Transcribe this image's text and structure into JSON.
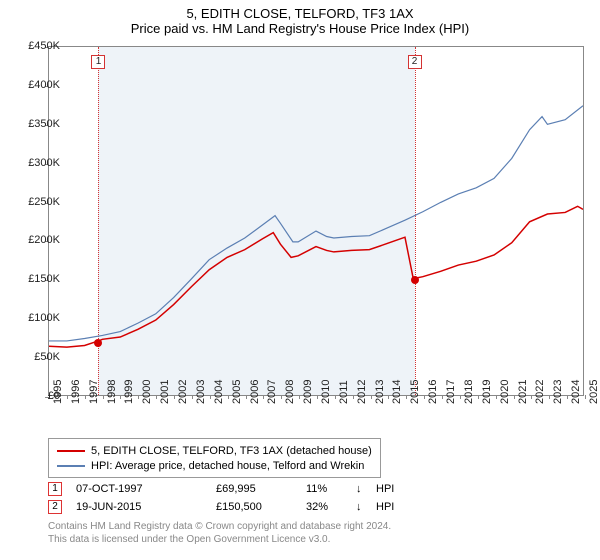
{
  "title": "5, EDITH CLOSE, TELFORD, TF3 1AX",
  "subtitle": "Price paid vs. HM Land Registry's House Price Index (HPI)",
  "chart": {
    "type": "line",
    "background_color": "#ffffff",
    "shaded_band_color": "#eef3f8",
    "shaded_band": {
      "from_year": 1997.77,
      "to_year": 2015.46
    },
    "xlim": [
      1995,
      2025
    ],
    "ylim": [
      0,
      450000
    ],
    "ytick_step": 50000,
    "y_prefix": "£",
    "y_labels": [
      "£0",
      "£50K",
      "£100K",
      "£150K",
      "£200K",
      "£250K",
      "£300K",
      "£350K",
      "£400K",
      "£450K"
    ],
    "x_ticks": [
      1995,
      1996,
      1997,
      1998,
      1999,
      2000,
      2001,
      2002,
      2003,
      2004,
      2005,
      2006,
      2007,
      2008,
      2009,
      2010,
      2011,
      2012,
      2013,
      2014,
      2015,
      2016,
      2017,
      2018,
      2019,
      2020,
      2021,
      2022,
      2023,
      2024,
      2025
    ],
    "series": [
      {
        "name": "price_paid",
        "label": "5, EDITH CLOSE, TELFORD, TF3 1AX (detached house)",
        "color": "#d40000",
        "line_width": 1.5,
        "data": [
          [
            1995,
            63000
          ],
          [
            1996,
            62000
          ],
          [
            1997,
            64000
          ],
          [
            1997.77,
            69995
          ],
          [
            1998,
            72000
          ],
          [
            1999,
            75000
          ],
          [
            2000,
            85000
          ],
          [
            2001,
            97000
          ],
          [
            2002,
            117000
          ],
          [
            2003,
            140000
          ],
          [
            2004,
            162000
          ],
          [
            2005,
            178000
          ],
          [
            2006,
            188000
          ],
          [
            2007,
            202000
          ],
          [
            2007.6,
            210000
          ],
          [
            2008,
            195000
          ],
          [
            2008.6,
            178000
          ],
          [
            2009,
            180000
          ],
          [
            2010,
            192000
          ],
          [
            2010.6,
            187000
          ],
          [
            2011,
            185000
          ],
          [
            2012,
            187000
          ],
          [
            2013,
            188000
          ],
          [
            2014,
            196000
          ],
          [
            2015,
            204000
          ],
          [
            2015.46,
            150500
          ],
          [
            2016,
            153000
          ],
          [
            2017,
            160000
          ],
          [
            2018,
            168000
          ],
          [
            2019,
            173000
          ],
          [
            2020,
            181000
          ],
          [
            2021,
            197000
          ],
          [
            2022,
            224000
          ],
          [
            2023,
            234000
          ],
          [
            2024,
            236000
          ],
          [
            2024.7,
            244000
          ],
          [
            2025,
            240000
          ]
        ]
      },
      {
        "name": "hpi",
        "label": "HPI: Average price, detached house, Telford and Wrekin",
        "color": "#5b7fb3",
        "line_width": 1.2,
        "data": [
          [
            1995,
            70000
          ],
          [
            1996,
            70000
          ],
          [
            1997,
            73000
          ],
          [
            1998,
            77000
          ],
          [
            1999,
            82000
          ],
          [
            2000,
            93000
          ],
          [
            2001,
            105000
          ],
          [
            2002,
            126000
          ],
          [
            2003,
            150000
          ],
          [
            2004,
            175000
          ],
          [
            2005,
            190000
          ],
          [
            2006,
            203000
          ],
          [
            2007,
            220000
          ],
          [
            2007.7,
            232000
          ],
          [
            2008,
            222000
          ],
          [
            2008.7,
            198000
          ],
          [
            2009,
            198000
          ],
          [
            2010,
            212000
          ],
          [
            2010.6,
            205000
          ],
          [
            2011,
            203000
          ],
          [
            2012,
            205000
          ],
          [
            2013,
            206000
          ],
          [
            2014,
            216000
          ],
          [
            2015,
            226000
          ],
          [
            2016,
            237000
          ],
          [
            2017,
            249000
          ],
          [
            2018,
            260000
          ],
          [
            2019,
            268000
          ],
          [
            2020,
            280000
          ],
          [
            2021,
            306000
          ],
          [
            2022,
            343000
          ],
          [
            2022.7,
            360000
          ],
          [
            2023,
            350000
          ],
          [
            2024,
            356000
          ],
          [
            2025,
            374000
          ]
        ]
      }
    ],
    "sale_markers": [
      {
        "idx": "1",
        "year": 1997.77,
        "price": 69995
      },
      {
        "idx": "2",
        "year": 2015.46,
        "price": 150500
      }
    ],
    "marker_line_color": "#d33333",
    "marker_box_border": "#d33333",
    "sale_point_color": "#d40000",
    "axis_fontsize": 11,
    "title_fontsize": 13
  },
  "legend": {
    "items": [
      {
        "color": "#d40000",
        "label": "5, EDITH CLOSE, TELFORD, TF3 1AX (detached house)"
      },
      {
        "color": "#5b7fb3",
        "label": "HPI: Average price, detached house, Telford and Wrekin"
      }
    ]
  },
  "sales": [
    {
      "idx": "1",
      "date": "07-OCT-1997",
      "price": "£69,995",
      "pct": "11%",
      "arrow": "↓",
      "vs": "HPI"
    },
    {
      "idx": "2",
      "date": "19-JUN-2015",
      "price": "£150,500",
      "pct": "32%",
      "arrow": "↓",
      "vs": "HPI"
    }
  ],
  "footer": {
    "line1": "Contains HM Land Registry data © Crown copyright and database right 2024.",
    "line2": "This data is licensed under the Open Government Licence v3.0."
  }
}
